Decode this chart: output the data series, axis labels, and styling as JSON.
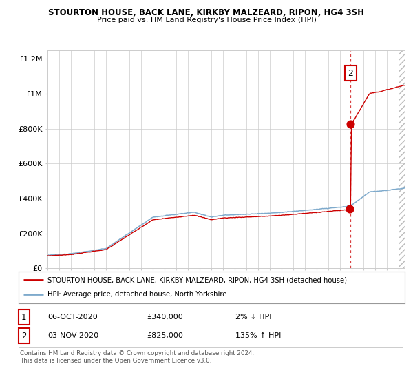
{
  "title": "STOURTON HOUSE, BACK LANE, KIRKBY MALZEARD, RIPON, HG4 3SH",
  "subtitle": "Price paid vs. HM Land Registry's House Price Index (HPI)",
  "legend_line1": "STOURTON HOUSE, BACK LANE, KIRKBY MALZEARD, RIPON, HG4 3SH (detached house)",
  "legend_line2": "HPI: Average price, detached house, North Yorkshire",
  "table_row1_num": "1",
  "table_row1_date": "06-OCT-2020",
  "table_row1_price": "£340,000",
  "table_row1_hpi": "2% ↓ HPI",
  "table_row2_num": "2",
  "table_row2_date": "03-NOV-2020",
  "table_row2_price": "£825,000",
  "table_row2_hpi": "135% ↑ HPI",
  "footer": "Contains HM Land Registry data © Crown copyright and database right 2024.\nThis data is licensed under the Open Government Licence v3.0.",
  "hpi_color": "#7eaacc",
  "price_color": "#cc0000",
  "point1_x": 2020.77,
  "point1_y": 340000,
  "point2_x": 2020.84,
  "point2_y": 825000,
  "vline_x": 2020.84,
  "ylim_min": 0,
  "ylim_max": 1250000,
  "xlim_min": 1995,
  "xlim_max": 2025.5,
  "background_color": "#ffffff",
  "grid_color": "#cccccc",
  "yticks": [
    0,
    200000,
    400000,
    600000,
    800000,
    1000000,
    1200000
  ],
  "ytick_labels": [
    "£0",
    "£200K",
    "£400K",
    "£600K",
    "£800K",
    "£1M",
    "£1.2M"
  ]
}
